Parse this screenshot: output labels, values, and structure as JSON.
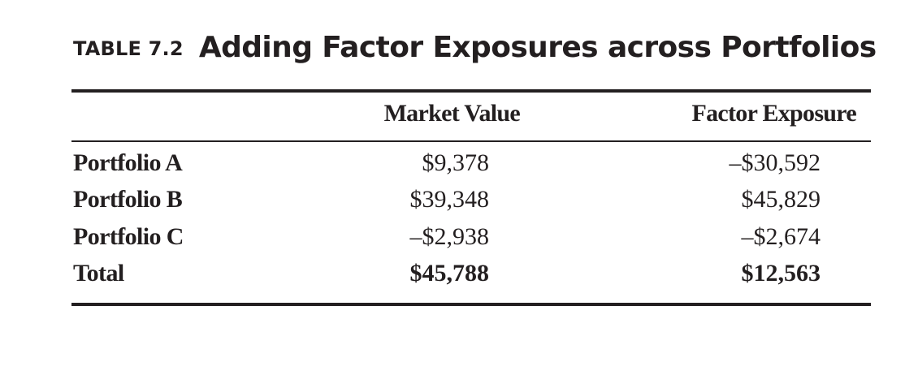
{
  "table": {
    "number": "TABLE 7.2",
    "title": "Adding Factor Exposures across Portfolios",
    "columns": {
      "label": "",
      "market_value": "Market Value",
      "factor_exposure": "Factor Exposure"
    },
    "rows": [
      {
        "label": "Portfolio A",
        "market_value": "$9,378",
        "factor_exposure": "–$30,592"
      },
      {
        "label": "Portfolio B",
        "market_value": "$39,348",
        "factor_exposure": "$45,829"
      },
      {
        "label": "Portfolio C",
        "market_value": "–$2,938",
        "factor_exposure": "–$2,674"
      }
    ],
    "total": {
      "label": "Total",
      "market_value": "$45,788",
      "factor_exposure": "$12,563"
    }
  }
}
